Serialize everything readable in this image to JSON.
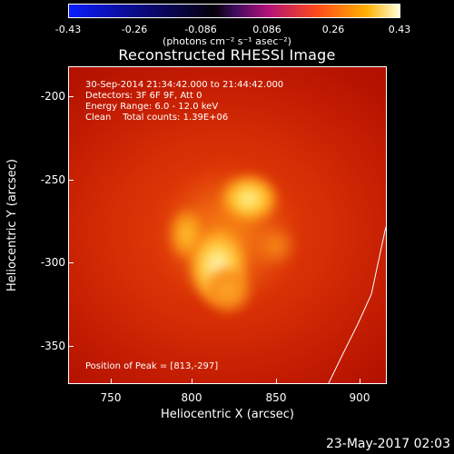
{
  "colorbar": {
    "ticks": [
      "-0.43",
      "-0.26",
      "-0.086",
      "0.086",
      "0.26",
      "0.43"
    ],
    "unit": "(photons cm⁻² s⁻¹ asec⁻²)"
  },
  "title": "Reconstructed RHESSI Image",
  "info": {
    "time": "30-Sep-2014 21:34:42.000 to 21:44:42.000",
    "detectors": "Detectors: 3F 6F 9F, Att 0",
    "energy": "Energy Range: 6.0 - 12.0 keV",
    "clean": "Clean    Total counts: 1.39E+06",
    "peak": "Position of Peak = [813,-297]"
  },
  "axes": {
    "xlabel": "Heliocentric X (arcsec)",
    "ylabel": "Heliocentric Y (arcsec)",
    "xticks": [
      "750",
      "800",
      "850",
      "900"
    ],
    "yticks": [
      "-200",
      "-250",
      "-300",
      "-350"
    ]
  },
  "footer": {
    "date": "23-May-2017 02:03"
  }
}
